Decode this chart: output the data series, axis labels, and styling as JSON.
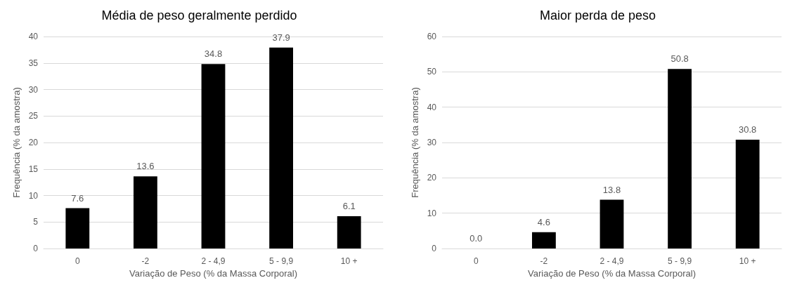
{
  "chart_data": [
    {
      "type": "bar",
      "title": "Média de peso geralmente perdido",
      "xlabel": "Variação de Peso (% da Massa Corporal)",
      "ylabel": "Frequência (% da amostra)",
      "categories": [
        "0",
        "-2",
        "2 - 4,9",
        "5 - 9,9",
        "10 +"
      ],
      "values": [
        7.6,
        13.6,
        34.8,
        37.9,
        6.1
      ],
      "value_labels": [
        "7.6",
        "13.6",
        "34.8",
        "37.9",
        "6.1"
      ],
      "color": "#000000",
      "ylim": [
        0,
        40
      ],
      "yticks": [
        0,
        5,
        10,
        15,
        20,
        25,
        30,
        35,
        40
      ],
      "grid": "y"
    },
    {
      "type": "bar",
      "title": "Maior perda de peso",
      "xlabel": "Variação de Peso (% da Massa Corporal)",
      "ylabel": "Frequência (% da amostra)",
      "categories": [
        "0",
        "-2",
        "2 - 4,9",
        "5 - 9,9",
        "10 +"
      ],
      "values": [
        0.0,
        4.6,
        13.8,
        50.8,
        30.8
      ],
      "value_labels": [
        "0.0",
        "4.6",
        "13.8",
        "50.8",
        "30.8"
      ],
      "color": "#000000",
      "ylim": [
        0,
        60
      ],
      "yticks": [
        0,
        10,
        20,
        30,
        40,
        50,
        60
      ],
      "grid": "y"
    }
  ]
}
